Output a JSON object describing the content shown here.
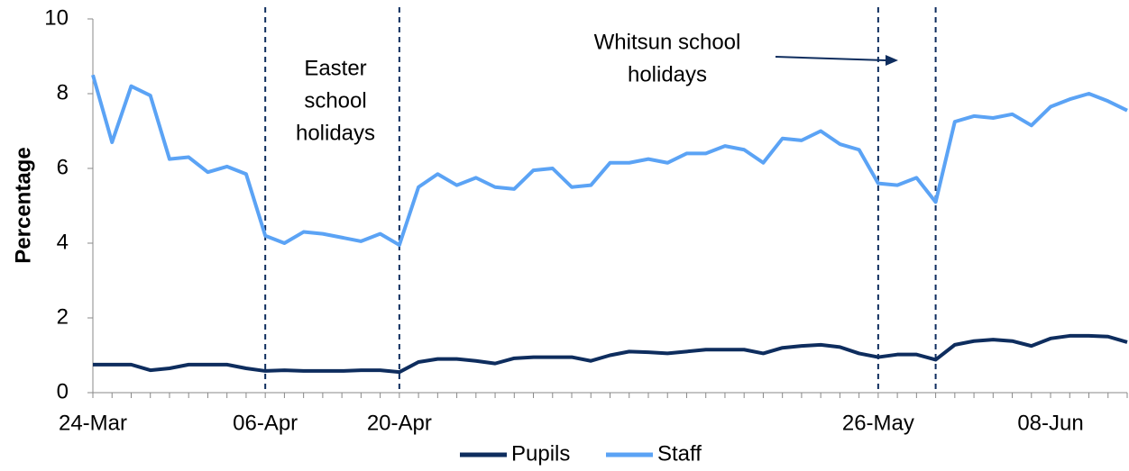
{
  "chart_data": {
    "type": "line",
    "y_label": "Percentage",
    "categories": [
      "24-Mar",
      null,
      null,
      null,
      null,
      null,
      null,
      null,
      null,
      "06-Apr",
      null,
      null,
      null,
      null,
      null,
      null,
      "20-Apr",
      null,
      null,
      null,
      null,
      null,
      null,
      null,
      null,
      null,
      null,
      null,
      null,
      null,
      null,
      null,
      null,
      null,
      null,
      null,
      null,
      null,
      null,
      null,
      null,
      "26-May",
      null,
      null,
      null,
      null,
      null,
      null,
      null,
      null,
      "08-Jun",
      null,
      null,
      null,
      null
    ],
    "series": [
      {
        "name": "Pupils",
        "color": "#0e2d5e",
        "values": [
          0.75,
          0.75,
          0.75,
          0.6,
          0.65,
          0.75,
          0.75,
          0.75,
          0.65,
          0.58,
          0.6,
          0.58,
          0.58,
          0.58,
          0.6,
          0.6,
          0.55,
          0.82,
          0.9,
          0.9,
          0.85,
          0.78,
          0.92,
          0.95,
          0.95,
          0.95,
          0.85,
          1.0,
          1.1,
          1.08,
          1.05,
          1.1,
          1.15,
          1.15,
          1.15,
          1.05,
          1.2,
          1.25,
          1.28,
          1.22,
          1.05,
          0.95,
          1.02,
          1.02,
          0.88,
          1.28,
          1.38,
          1.42,
          1.38,
          1.25,
          1.45,
          1.52,
          1.52,
          1.5,
          1.35
        ]
      },
      {
        "name": "Staff",
        "color": "#5ba3f5",
        "values": [
          8.5,
          6.7,
          8.2,
          7.95,
          6.25,
          6.3,
          5.9,
          6.05,
          5.85,
          4.2,
          4.0,
          4.3,
          4.25,
          4.15,
          4.05,
          4.25,
          3.95,
          5.5,
          5.85,
          5.55,
          5.75,
          5.5,
          5.45,
          5.95,
          6.0,
          5.5,
          5.55,
          6.15,
          6.15,
          6.25,
          6.15,
          6.4,
          6.4,
          6.6,
          6.5,
          6.15,
          6.8,
          6.75,
          7.0,
          6.65,
          6.5,
          5.6,
          5.55,
          5.75,
          5.1,
          7.25,
          7.4,
          7.35,
          7.45,
          7.15,
          7.65,
          7.85,
          8.0,
          7.8,
          7.55
        ]
      }
    ],
    "ylim": [
      0,
      10
    ],
    "yticks": [
      0,
      2,
      4,
      6,
      8,
      10
    ],
    "annotations": [
      {
        "lines": [
          "Easter",
          "school",
          "holidays"
        ]
      },
      {
        "lines": [
          "Whitsun school",
          "holidays"
        ]
      }
    ],
    "legend": "bottom"
  }
}
